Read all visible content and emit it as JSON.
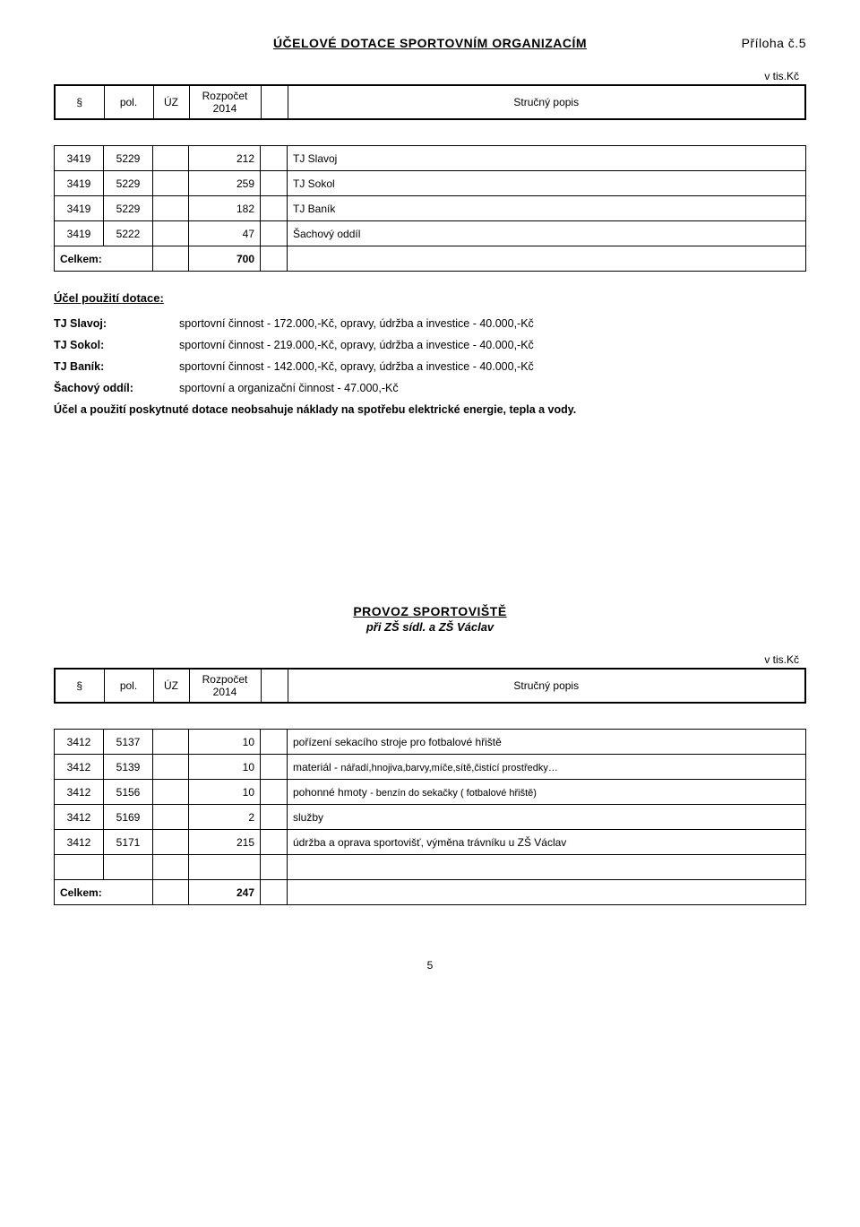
{
  "header": {
    "title": "ÚČELOVÉ  DOTACE  SPORTOVNÍM  ORGANIZACÍM",
    "annex": "Příloha č.5",
    "unit": "v tis.Kč"
  },
  "tableHeader": {
    "par": "§",
    "pol": "pol.",
    "uz": "ÚZ",
    "rozpocet": "Rozpočet 2014",
    "popis": "Stručný popis"
  },
  "dotace": {
    "rows": [
      {
        "par": "3419",
        "pol": "5229",
        "amt": "212",
        "desc": "TJ Slavoj"
      },
      {
        "par": "3419",
        "pol": "5229",
        "amt": "259",
        "desc": "TJ Sokol"
      },
      {
        "par": "3419",
        "pol": "5229",
        "amt": "182",
        "desc": "TJ Baník"
      },
      {
        "par": "3419",
        "pol": "5222",
        "amt": "47",
        "desc": "Šachový oddíl"
      }
    ],
    "totalLabel": "Celkem:",
    "totalValue": "700"
  },
  "usage": {
    "heading": "Účel použití dotace:",
    "items": [
      {
        "k": "TJ Slavoj:",
        "v": "sportovní činnost - 172.000,-Kč,  opravy, údržba a investice  - 40.000,-Kč"
      },
      {
        "k": "TJ Sokol:",
        "v": "sportovní činnost  - 219.000,-Kč,  opravy, údržba a investice - 40.000,-Kč"
      },
      {
        "k": "TJ Baník:",
        "v": "sportovní činnost  - 142.000,-Kč,  opravy, údržba a investice - 40.000,-Kč"
      },
      {
        "k": "Šachový oddíl:",
        "v": "sportovní a organizační činnost - 47.000,-Kč"
      }
    ],
    "note": "Účel a použití poskytnuté dotace neobsahuje náklady na spotřebu elektrické energie, tepla a vody."
  },
  "provoz": {
    "title": "PROVOZ  SPORTOVIŠTĚ",
    "subtitle": "při ZŠ sídl. a ZŠ  Václav",
    "unit": "v tis.Kč",
    "rows": [
      {
        "par": "3412",
        "pol": "5137",
        "amt": "10",
        "desc": "pořízení sekacího stroje pro fotbalové hřiště",
        "small": ""
      },
      {
        "par": "3412",
        "pol": "5139",
        "amt": "10",
        "desc": "materiál  - ",
        "small": "nářadí,hnojiva,barvy,míče,sítě,čistící prostředky…"
      },
      {
        "par": "3412",
        "pol": "5156",
        "amt": "10",
        "desc": "pohonné hmoty ",
        "small": "- benzín do sekačky ( fotbalové hřiště)"
      },
      {
        "par": "3412",
        "pol": "5169",
        "amt": "2",
        "desc": "služby",
        "small": ""
      },
      {
        "par": "3412",
        "pol": "5171",
        "amt": "215",
        "desc": "údržba a oprava sportovišť, výměna trávníku u ZŠ Václav",
        "small": ""
      }
    ],
    "totalLabel": "Celkem:",
    "totalValue": "247"
  },
  "pageNumber": "5"
}
